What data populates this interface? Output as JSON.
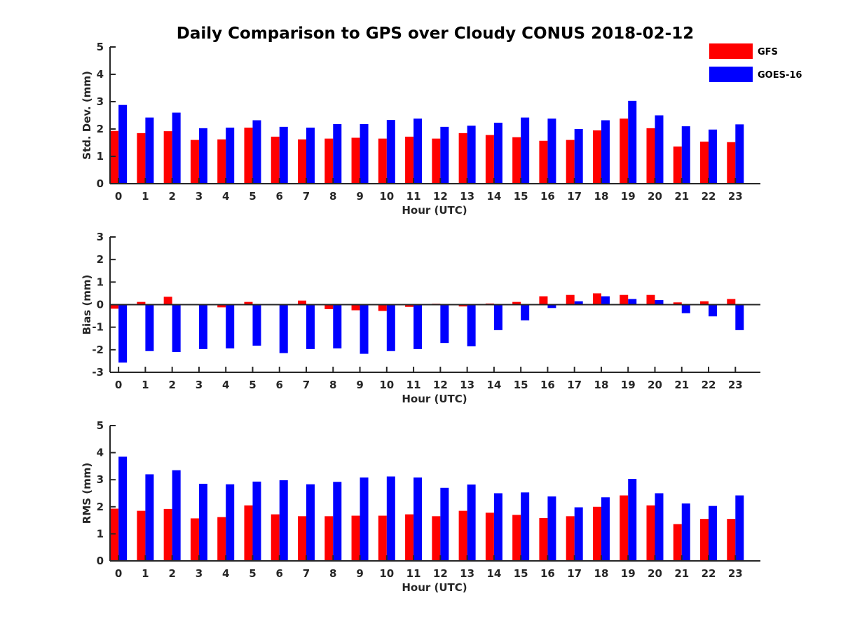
{
  "figure_title": "Daily Comparison to GPS over Cloudy CONUS 2018-02-12",
  "legend": {
    "position": "top-right",
    "entries": [
      {
        "label": "GFS",
        "color": "#ff0000"
      },
      {
        "label": "GOES-16",
        "color": "#0000ff"
      }
    ]
  },
  "chart_data": [
    {
      "type": "bar",
      "title": "Daily Comparison to GPS over Cloudy CONUS 2018-02-12",
      "xlabel": "Hour (UTC)",
      "ylabel": "Std. Dev. (mm)",
      "ylim": [
        0,
        5
      ],
      "yticks": [
        0,
        1,
        2,
        3,
        4,
        5
      ],
      "grid": false,
      "categories": [
        "0",
        "1",
        "2",
        "3",
        "4",
        "5",
        "6",
        "7",
        "8",
        "9",
        "10",
        "11",
        "12",
        "13",
        "14",
        "15",
        "16",
        "17",
        "18",
        "19",
        "20",
        "21",
        "22",
        "23"
      ],
      "series": [
        {
          "name": "GFS",
          "color": "#ff0000",
          "values": [
            1.93,
            1.85,
            1.92,
            1.6,
            1.62,
            2.05,
            1.72,
            1.62,
            1.65,
            1.68,
            1.65,
            1.72,
            1.65,
            1.85,
            1.78,
            1.7,
            1.57,
            1.6,
            1.95,
            2.38,
            2.03,
            1.36,
            1.54,
            1.52
          ]
        },
        {
          "name": "GOES-16",
          "color": "#0000ff",
          "values": [
            2.88,
            2.42,
            2.6,
            2.03,
            2.05,
            2.32,
            2.08,
            2.05,
            2.18,
            2.18,
            2.33,
            2.38,
            2.08,
            2.12,
            2.23,
            2.42,
            2.38,
            2.0,
            2.32,
            3.03,
            2.5,
            2.1,
            1.98,
            2.17
          ]
        }
      ]
    },
    {
      "type": "bar",
      "xlabel": "Hour (UTC)",
      "ylabel": "Bias (mm)",
      "ylim": [
        -3,
        3
      ],
      "yticks": [
        -3,
        -2,
        -1,
        0,
        1,
        2,
        3
      ],
      "grid": false,
      "categories": [
        "0",
        "1",
        "2",
        "3",
        "4",
        "5",
        "6",
        "7",
        "8",
        "9",
        "10",
        "11",
        "12",
        "13",
        "14",
        "15",
        "16",
        "17",
        "18",
        "19",
        "20",
        "21",
        "22",
        "23"
      ],
      "series": [
        {
          "name": "GFS",
          "color": "#ff0000",
          "values": [
            -0.18,
            0.12,
            0.35,
            -0.02,
            -0.12,
            0.12,
            -0.02,
            0.18,
            -0.2,
            -0.25,
            -0.28,
            -0.1,
            0.04,
            -0.08,
            0.05,
            0.12,
            0.37,
            0.43,
            0.5,
            0.43,
            0.43,
            0.1,
            0.15,
            0.25
          ]
        },
        {
          "name": "GOES-16",
          "color": "#0000ff",
          "values": [
            -2.57,
            -2.06,
            -2.1,
            -1.97,
            -1.94,
            -1.82,
            -2.15,
            -1.97,
            -1.94,
            -2.18,
            -2.06,
            -1.97,
            -1.7,
            -1.85,
            -1.13,
            -0.7,
            -0.15,
            0.15,
            0.37,
            0.25,
            0.2,
            -0.38,
            -0.52,
            -1.13
          ]
        }
      ]
    },
    {
      "type": "bar",
      "xlabel": "Hour (UTC)",
      "ylabel": "RMS (mm)",
      "ylim": [
        0,
        5
      ],
      "yticks": [
        0,
        1,
        2,
        3,
        4,
        5
      ],
      "grid": false,
      "categories": [
        "0",
        "1",
        "2",
        "3",
        "4",
        "5",
        "6",
        "7",
        "8",
        "9",
        "10",
        "11",
        "12",
        "13",
        "14",
        "15",
        "16",
        "17",
        "18",
        "19",
        "20",
        "21",
        "22",
        "23"
      ],
      "series": [
        {
          "name": "GFS",
          "color": "#ff0000",
          "values": [
            1.93,
            1.85,
            1.92,
            1.57,
            1.62,
            2.05,
            1.72,
            1.65,
            1.65,
            1.67,
            1.67,
            1.72,
            1.65,
            1.85,
            1.78,
            1.7,
            1.58,
            1.65,
            2.0,
            2.42,
            2.05,
            1.36,
            1.55,
            1.55
          ]
        },
        {
          "name": "GOES-16",
          "color": "#0000ff",
          "values": [
            3.85,
            3.2,
            3.35,
            2.85,
            2.83,
            2.93,
            2.98,
            2.83,
            2.92,
            3.08,
            3.12,
            3.08,
            2.7,
            2.82,
            2.5,
            2.53,
            2.38,
            1.98,
            2.35,
            3.03,
            2.5,
            2.12,
            2.03,
            2.42
          ]
        }
      ]
    }
  ]
}
